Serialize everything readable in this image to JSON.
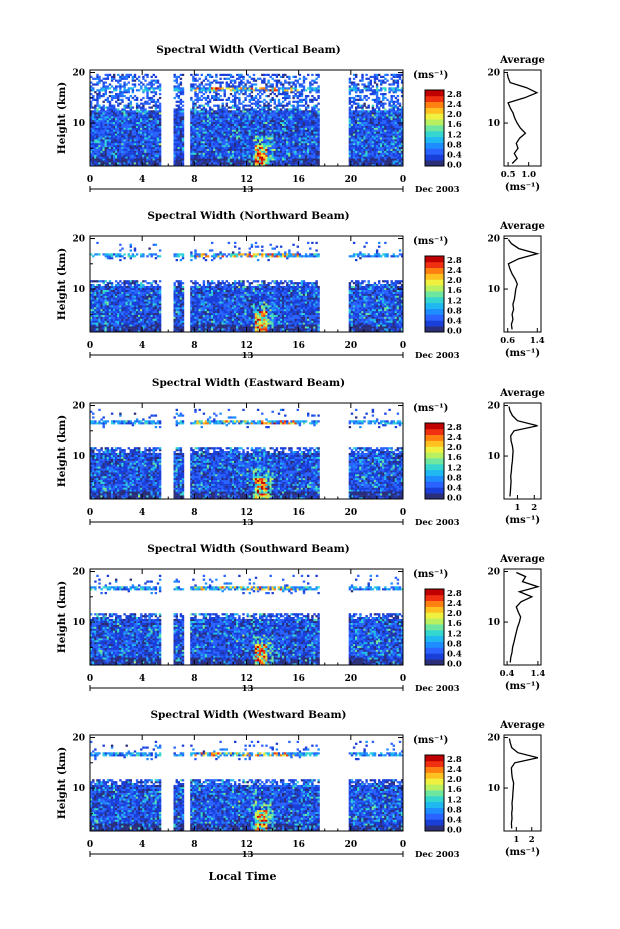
{
  "figure": {
    "xlabel": "Local Time",
    "date_label": "Dec 2003",
    "day_label": "13",
    "cbar_unit": "(ms⁻¹)",
    "avg_title": "Average",
    "avg_unit": "(ms⁻¹)",
    "ylabel": "Height (km)"
  },
  "colors": {
    "scale": [
      "#2b2f7a",
      "#1a3fd8",
      "#2a63ff",
      "#1e8dff",
      "#20b8f0",
      "#35d6d0",
      "#6fe6a0",
      "#b8f060",
      "#f0f040",
      "#ffc020",
      "#ff8010",
      "#f03010",
      "#c00000"
    ],
    "no_data": "#ffffff"
  },
  "chart_data": [
    {
      "type": "heatmap",
      "title": "Spectral Width (Vertical Beam)",
      "x_ticks": [
        "0",
        "4",
        "8",
        "12",
        "16",
        "20",
        "0"
      ],
      "y_ticks": [
        "10",
        "20"
      ],
      "xlim": [
        0,
        24
      ],
      "ylim": [
        1.5,
        20.5
      ],
      "cbar_ticks": [
        "0.0",
        "0.4",
        "0.8",
        "1.2",
        "1.6",
        "2.0",
        "2.4",
        "2.8"
      ],
      "cbar_range": [
        0,
        3.0
      ],
      "gaps": [
        [
          5.3,
          6.3
        ],
        [
          7.2,
          7.6
        ],
        [
          17.6,
          19.8
        ]
      ],
      "low_top_km": 13.5,
      "sparse_band_km": [
        13.5,
        19.5
      ],
      "thin_layer_km": 16.5,
      "avg_profile": {
        "xlim": [
          0.4,
          1.3
        ],
        "x_ticks": [
          "0.5",
          "1.0"
        ],
        "height": [
          2,
          3,
          4,
          5,
          6,
          7,
          8,
          9,
          10,
          11,
          12,
          13,
          14,
          15,
          16,
          17,
          18,
          19,
          19.8
        ],
        "value": [
          0.6,
          0.72,
          0.65,
          0.74,
          0.7,
          0.78,
          0.92,
          0.8,
          0.72,
          0.66,
          0.62,
          0.55,
          0.5,
          0.9,
          1.2,
          0.95,
          0.55,
          0.5,
          0.48
        ]
      }
    },
    {
      "type": "heatmap",
      "title": "Spectral Width (Northward Beam)",
      "x_ticks": [
        "0",
        "4",
        "8",
        "12",
        "16",
        "20",
        "0"
      ],
      "y_ticks": [
        "10",
        "20"
      ],
      "xlim": [
        0,
        24
      ],
      "ylim": [
        1.5,
        20.5
      ],
      "cbar_ticks": [
        "0.0",
        "0.4",
        "0.8",
        "1.2",
        "1.6",
        "2.0",
        "2.4",
        "2.8"
      ],
      "cbar_range": [
        0,
        3.0
      ],
      "gaps": [
        [
          5.3,
          6.3
        ],
        [
          7.2,
          7.6
        ],
        [
          17.6,
          19.8
        ]
      ],
      "low_top_km": 11.5,
      "sparse_band_km": [
        15.5,
        19.0
      ],
      "thin_layer_km": 16.5,
      "avg_profile": {
        "xlim": [
          0.5,
          1.5
        ],
        "x_ticks": [
          "0.6",
          "1.4"
        ],
        "height": [
          2,
          3,
          4,
          5,
          6,
          7,
          8,
          9,
          10,
          11,
          12,
          13,
          14,
          15,
          16,
          17,
          18,
          19,
          19.8
        ],
        "value": [
          0.72,
          0.7,
          0.74,
          0.72,
          0.76,
          0.74,
          0.78,
          0.8,
          0.82,
          0.86,
          0.8,
          0.72,
          0.66,
          0.62,
          0.9,
          1.4,
          0.9,
          0.7,
          0.62
        ]
      }
    },
    {
      "type": "heatmap",
      "title": "Spectral Width (Eastward Beam)",
      "x_ticks": [
        "0",
        "4",
        "8",
        "12",
        "16",
        "20",
        "0"
      ],
      "y_ticks": [
        "10",
        "20"
      ],
      "xlim": [
        0,
        24
      ],
      "ylim": [
        1.5,
        20.5
      ],
      "cbar_ticks": [
        "0.0",
        "0.4",
        "0.8",
        "1.2",
        "1.6",
        "2.0",
        "2.4",
        "2.8"
      ],
      "cbar_range": [
        0,
        3.0
      ],
      "gaps": [
        [
          5.3,
          6.3
        ],
        [
          7.2,
          7.6
        ],
        [
          17.6,
          19.8
        ]
      ],
      "low_top_km": 11.5,
      "sparse_band_km": [
        15.5,
        19.0
      ],
      "thin_layer_km": 16.5,
      "avg_profile": {
        "xlim": [
          0.2,
          2.4
        ],
        "x_ticks": [
          "1",
          "2"
        ],
        "height": [
          2,
          3,
          4,
          5,
          6,
          7,
          8,
          9,
          10,
          11,
          12,
          13,
          14,
          15,
          16,
          17,
          18,
          19,
          19.8
        ],
        "value": [
          0.55,
          0.58,
          0.6,
          0.62,
          0.6,
          0.64,
          0.66,
          0.7,
          0.72,
          0.74,
          0.7,
          0.62,
          0.6,
          0.8,
          2.2,
          1.0,
          0.7,
          0.55,
          0.5
        ]
      }
    },
    {
      "type": "heatmap",
      "title": "Spectral Width (Southward Beam)",
      "x_ticks": [
        "0",
        "4",
        "8",
        "12",
        "16",
        "20",
        "0"
      ],
      "y_ticks": [
        "10",
        "20"
      ],
      "xlim": [
        0,
        24
      ],
      "ylim": [
        1.5,
        20.5
      ],
      "cbar_ticks": [
        "0.0",
        "0.4",
        "0.8",
        "1.2",
        "1.6",
        "2.0",
        "2.4",
        "2.8"
      ],
      "cbar_range": [
        0,
        3.0
      ],
      "gaps": [
        [
          5.3,
          6.3
        ],
        [
          7.2,
          7.6
        ],
        [
          17.6,
          19.8
        ]
      ],
      "low_top_km": 11.5,
      "sparse_band_km": [
        15.5,
        19.0
      ],
      "thin_layer_km": 16.5,
      "avg_profile": {
        "xlim": [
          0.3,
          1.5
        ],
        "x_ticks": [
          "0.4",
          "1.4"
        ],
        "height": [
          2,
          3,
          4,
          5,
          6,
          7,
          8,
          9,
          10,
          11,
          12,
          13,
          14,
          15,
          16,
          17,
          18,
          19,
          19.8
        ],
        "value": [
          0.5,
          0.52,
          0.56,
          0.58,
          0.62,
          0.66,
          0.7,
          0.74,
          0.8,
          0.84,
          0.76,
          0.7,
          0.85,
          1.2,
          0.8,
          1.4,
          0.9,
          1.0,
          0.7
        ]
      }
    },
    {
      "type": "heatmap",
      "title": "Spectral Width (Westward Beam)",
      "x_ticks": [
        "0",
        "4",
        "8",
        "12",
        "16",
        "20",
        "0"
      ],
      "y_ticks": [
        "10",
        "20"
      ],
      "xlim": [
        0,
        24
      ],
      "ylim": [
        1.5,
        20.5
      ],
      "cbar_ticks": [
        "0.0",
        "0.4",
        "0.8",
        "1.2",
        "1.6",
        "2.0",
        "2.4",
        "2.8"
      ],
      "cbar_range": [
        0,
        3.0
      ],
      "gaps": [
        [
          5.3,
          6.3
        ],
        [
          7.2,
          7.6
        ],
        [
          17.6,
          19.8
        ]
      ],
      "low_top_km": 11.5,
      "sparse_band_km": [
        15.5,
        19.0
      ],
      "thin_layer_km": 16.5,
      "avg_profile": {
        "xlim": [
          0.2,
          2.6
        ],
        "x_ticks": [
          "1",
          "2"
        ],
        "height": [
          2,
          3,
          4,
          5,
          6,
          7,
          8,
          9,
          10,
          11,
          12,
          13,
          14,
          15,
          16,
          17,
          18,
          19,
          19.8
        ],
        "value": [
          0.7,
          0.68,
          0.72,
          0.7,
          0.74,
          0.72,
          0.76,
          0.78,
          0.8,
          0.82,
          0.74,
          0.7,
          0.68,
          0.9,
          2.4,
          1.1,
          0.7,
          0.6,
          0.55
        ]
      }
    }
  ]
}
